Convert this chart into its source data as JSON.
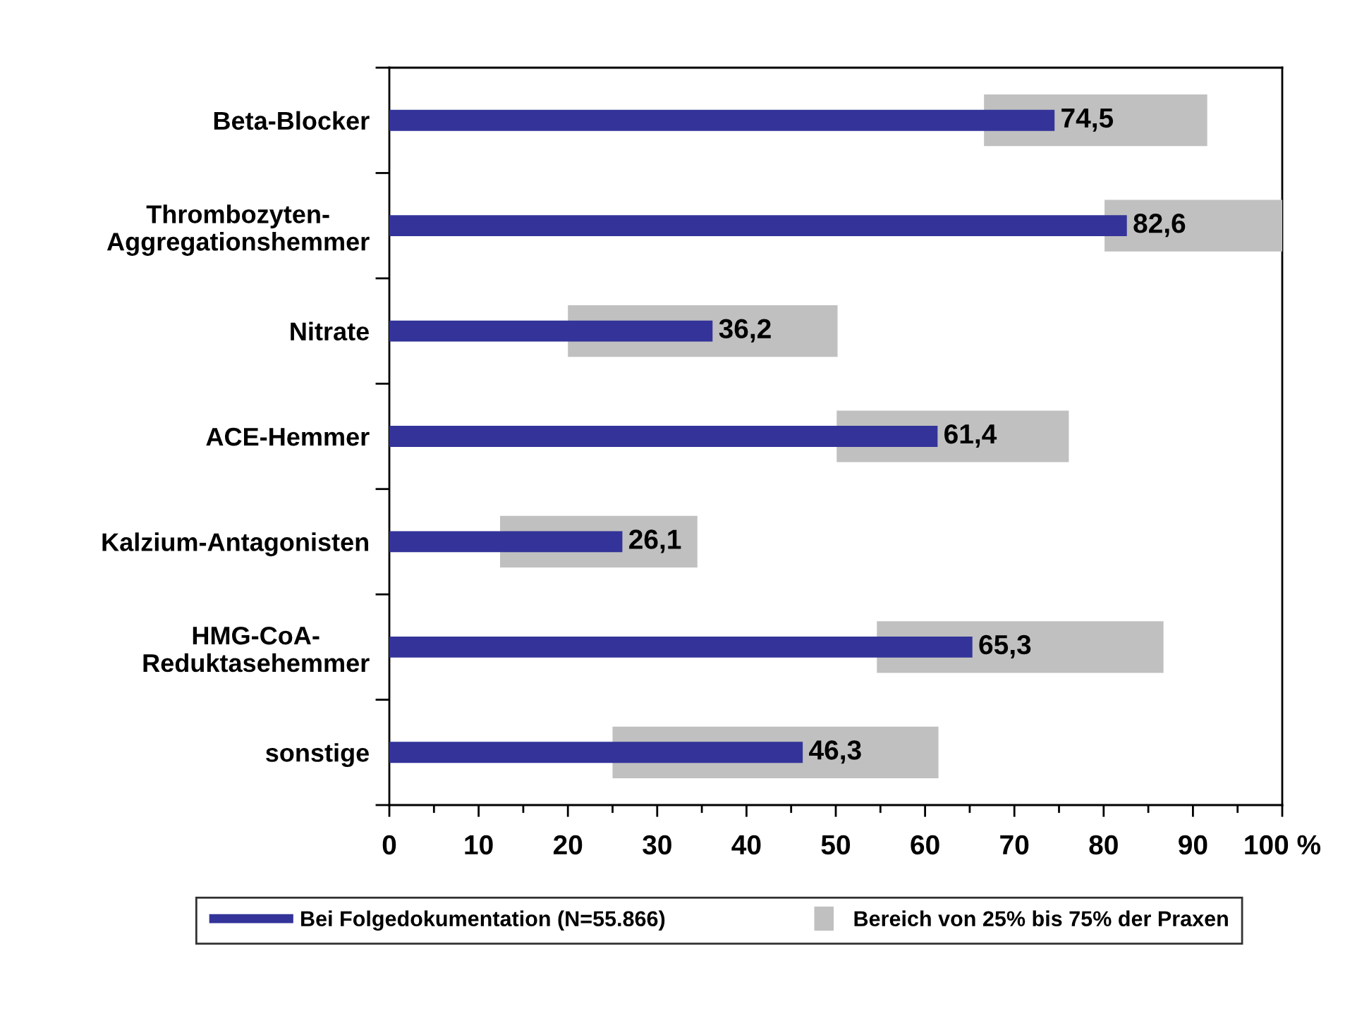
{
  "chart_data": {
    "type": "bar",
    "orientation": "horizontal",
    "categories": [
      "Beta-Blocker",
      "Thrombozyten-\nAggregationshemmer",
      "Nitrate",
      "ACE-Hemmer",
      "Kalzium-Antagonisten",
      "HMG-CoA-\nReduktasehemmer",
      "sonstige"
    ],
    "series": [
      {
        "name": "Bei Folgedokumentation (N=55.866)",
        "color": "#333399",
        "values": [
          74.5,
          82.6,
          36.2,
          61.4,
          26.1,
          65.3,
          46.3
        ],
        "value_labels": [
          "74,5",
          "82,6",
          "36,2",
          "61,4",
          "26,1",
          "65,3",
          "46,3"
        ]
      },
      {
        "name": "Bereich von 25% bis 75% der Praxen",
        "color": "#c0c0c0",
        "base": [
          66.6,
          80.1,
          20.0,
          50.1,
          12.4,
          54.6,
          25.0
        ],
        "values": [
          25.0,
          19.9,
          30.2,
          26.0,
          22.1,
          32.1,
          36.5
        ]
      }
    ],
    "xlim": [
      0,
      100
    ],
    "xticks": [
      0,
      {
        "value": 5,
        "label": null
      },
      10,
      {
        "value": 15,
        "label": null
      },
      20,
      {
        "value": 25,
        "label": null
      },
      30,
      {
        "value": 35,
        "label": null
      },
      40,
      {
        "value": 45,
        "label": null
      },
      50,
      {
        "value": 55,
        "label": null
      },
      60,
      {
        "value": 65,
        "label": null
      },
      70,
      {
        "value": 75,
        "label": null
      },
      80,
      {
        "value": 85,
        "label": null
      },
      90,
      {
        "value": 95,
        "label": null
      },
      {
        "value": 100,
        "label": "100 %"
      }
    ],
    "legend": "bottom"
  }
}
